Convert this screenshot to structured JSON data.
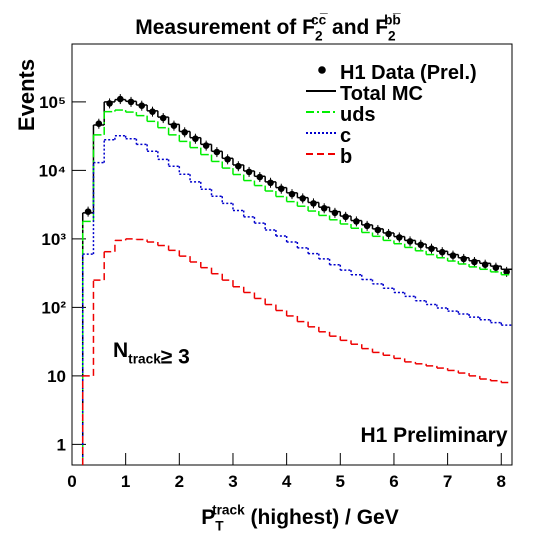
{
  "chart_data": {
    "type": "histogram",
    "title": [
      "Measurement of F",
      "2",
      "cc̅",
      " and F",
      "2",
      "bb̅"
    ],
    "y_label": "Events",
    "x_label": [
      "P",
      "T",
      "track",
      " (highest)  / GeV"
    ],
    "annotations": {
      "ntrack": [
        "N",
        "track",
        "≥ 3"
      ],
      "preliminary": "H1 Preliminary"
    },
    "log_y": true,
    "legend": "top-right",
    "bins": [
      0,
      0.2,
      0.4,
      0.6,
      0.8,
      1.0,
      1.2,
      1.4,
      1.6,
      1.8,
      2.0,
      2.2,
      2.4,
      2.6,
      2.8,
      3.0,
      3.2,
      3.4,
      3.6,
      3.8,
      4.0,
      4.2,
      4.4,
      4.6,
      4.8,
      5.0,
      5.2,
      5.4,
      5.6,
      5.8,
      6.0,
      6.2,
      6.4,
      6.6,
      6.8,
      7.0,
      7.2,
      7.4,
      7.6,
      7.8,
      8.0,
      8.2
    ],
    "xlim": [
      0,
      8.2
    ],
    "xticks": [
      0,
      1,
      2,
      3,
      4,
      5,
      6,
      7,
      8
    ],
    "ylim": [
      0.5,
      700000
    ],
    "yticks": [
      1,
      10,
      {
        "value": 100,
        "label": "10²"
      },
      {
        "value": 1000,
        "label": "10³"
      },
      {
        "value": 10000,
        "label": "10⁴"
      },
      {
        "value": 100000,
        "label": "10⁵"
      }
    ],
    "series": [
      {
        "name": "H1 Data (Prel.)",
        "style": "points",
        "color": "#000000",
        "values": [
          null,
          2500,
          48000,
          95000,
          110000,
          100000,
          88000,
          72000,
          58000,
          45000,
          36000,
          29000,
          23000,
          18500,
          14500,
          11500,
          9500,
          8000,
          6600,
          5400,
          4500,
          3900,
          3300,
          2800,
          2400,
          2100,
          1800,
          1550,
          1350,
          1180,
          1050,
          920,
          820,
          720,
          640,
          570,
          510,
          460,
          420,
          380,
          330
        ]
      },
      {
        "name": "Total MC",
        "style": "solid",
        "color": "#000000",
        "values": [
          null,
          2400,
          46000,
          100000,
          108000,
          102000,
          90000,
          74000,
          60000,
          47000,
          37000,
          30000,
          24000,
          19000,
          15000,
          12000,
          9800,
          8200,
          6800,
          5600,
          4700,
          4000,
          3400,
          2900,
          2500,
          2150,
          1850,
          1600,
          1400,
          1220,
          1080,
          950,
          840,
          740,
          660,
          590,
          530,
          480,
          440,
          400,
          360
        ]
      },
      {
        "name": "uds",
        "style": "dashdot",
        "color": "#00ee00",
        "values": [
          null,
          1800,
          33000,
          72000,
          76000,
          71000,
          63000,
          52000,
          42000,
          33000,
          26500,
          21500,
          17000,
          13500,
          10800,
          8700,
          7100,
          6000,
          5000,
          4150,
          3500,
          3000,
          2550,
          2200,
          1900,
          1650,
          1430,
          1240,
          1090,
          950,
          850,
          750,
          670,
          590,
          530,
          475,
          430,
          390,
          360,
          330,
          300
        ]
      },
      {
        "name": "c",
        "style": "dotted",
        "color": "#0000cc",
        "values": [
          null,
          600,
          13000,
          28000,
          32000,
          29000,
          24000,
          19000,
          14500,
          11500,
          8800,
          6800,
          5300,
          4200,
          3300,
          2600,
          2100,
          1700,
          1350,
          1100,
          900,
          740,
          610,
          510,
          420,
          350,
          300,
          255,
          220,
          190,
          165,
          145,
          125,
          110,
          98,
          88,
          80,
          72,
          66,
          60,
          55
        ]
      },
      {
        "name": "b",
        "style": "dashed",
        "color": "#ee0000",
        "values": [
          null,
          10,
          250,
          650,
          950,
          1000,
          980,
          900,
          800,
          680,
          560,
          460,
          380,
          310,
          250,
          200,
          165,
          135,
          110,
          90,
          75,
          62,
          52,
          44,
          38,
          33,
          29,
          25,
          22,
          20,
          18,
          16,
          15,
          14,
          13,
          12,
          11,
          10,
          9,
          8.5,
          8
        ]
      }
    ]
  }
}
